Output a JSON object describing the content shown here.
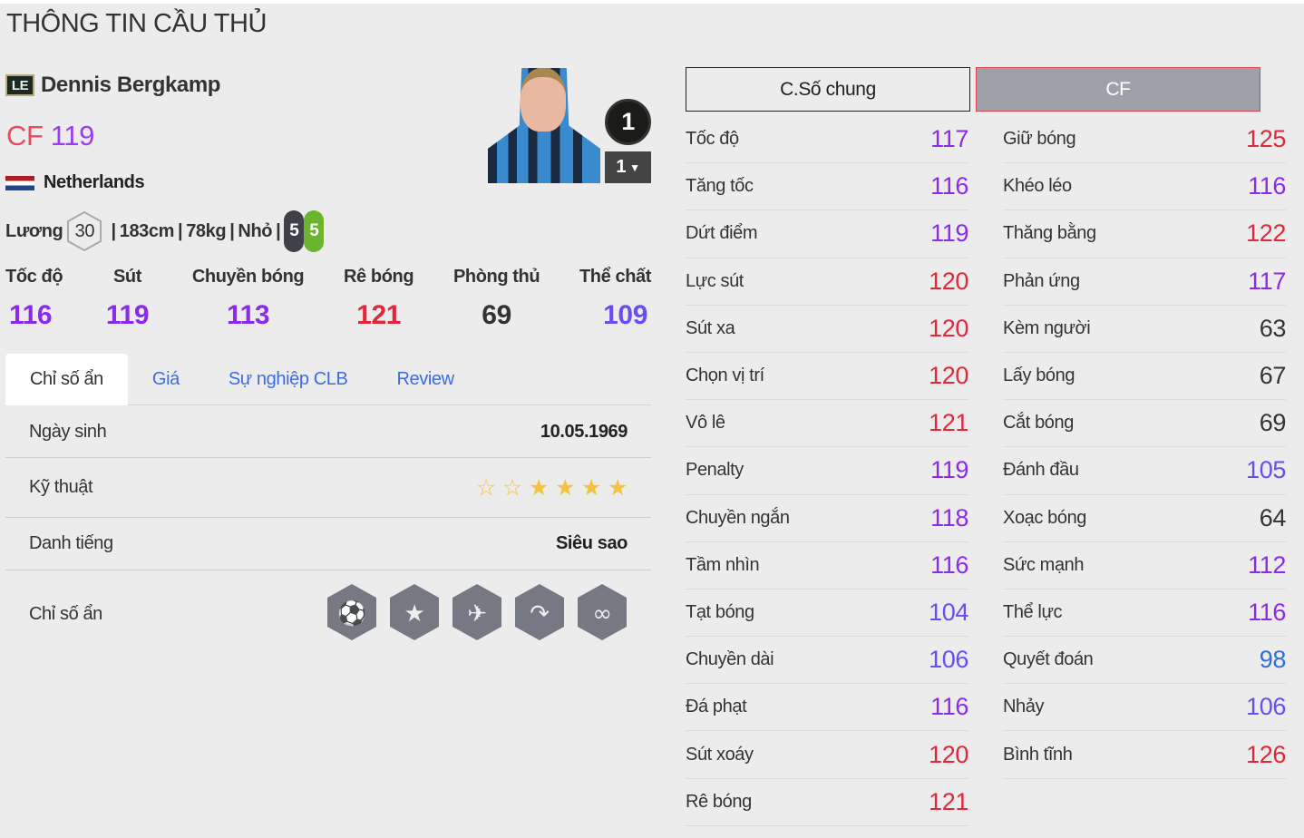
{
  "page_title": "THÔNG TIN CẦU THỦ",
  "player": {
    "season_badge": "LE",
    "name": "Dennis Bergkamp",
    "position": "CF",
    "ovr": "119",
    "nation": "Netherlands",
    "salary_label": "Lương",
    "salary": "30",
    "height": "183cm",
    "weight": "78kg",
    "body": "Nhỏ",
    "weak_foot": "5",
    "strong_foot": "5",
    "level": "1",
    "level_select": "1"
  },
  "colors": {
    "red": "#e0283c",
    "purple": "#8a2be8",
    "indigo": "#6a4cf0",
    "blue": "#2f6fd6",
    "dark": "#333333",
    "accent_link": "#3b6de0"
  },
  "summary": [
    {
      "label": "Tốc độ",
      "value": "116",
      "color": "#8a2be8"
    },
    {
      "label": "Sút",
      "value": "119",
      "color": "#8a2be8"
    },
    {
      "label": "Chuyền bóng",
      "value": "113",
      "color": "#8a2be8"
    },
    {
      "label": "Rê bóng",
      "value": "121",
      "color": "#e0283c"
    },
    {
      "label": "Phòng thủ",
      "value": "69",
      "color": "#333333"
    },
    {
      "label": "Thể chất",
      "value": "109",
      "color": "#6a4cf0"
    }
  ],
  "tabs": [
    "Chỉ số ẩn",
    "Giá",
    "Sự nghiệp CLB",
    "Review"
  ],
  "info": {
    "birth_label": "Ngày sinh",
    "birth": "10.05.1969",
    "skill_label": "Kỹ thuật",
    "skill_stars": 4,
    "skill_max": 6,
    "rep_label": "Danh tiếng",
    "rep": "Siêu sao",
    "hidden_label": "Chỉ số ẩn",
    "hidden_traits": [
      "long-shot-icon",
      "star-player-icon",
      "first-time-shot-icon",
      "finesse-shot-icon",
      "dribbler-icon"
    ]
  },
  "stat_buttons": {
    "general": "C.Số chung",
    "position": "CF"
  },
  "stats_left": [
    [
      "Tốc độ",
      "117",
      "#8a2be8"
    ],
    [
      "Tăng tốc",
      "116",
      "#8a2be8"
    ],
    [
      "Dứt điểm",
      "119",
      "#8a2be8"
    ],
    [
      "Lực sút",
      "120",
      "#e0283c"
    ],
    [
      "Sút xa",
      "120",
      "#e0283c"
    ],
    [
      "Chọn vị trí",
      "120",
      "#e0283c"
    ],
    [
      "Vô lê",
      "121",
      "#e0283c"
    ],
    [
      "Penalty",
      "119",
      "#8a2be8"
    ],
    [
      "Chuyền ngắn",
      "118",
      "#8a2be8"
    ],
    [
      "Tầm nhìn",
      "116",
      "#8a2be8"
    ],
    [
      "Tạt bóng",
      "104",
      "#6a4cf0"
    ],
    [
      "Chuyền dài",
      "106",
      "#6a4cf0"
    ],
    [
      "Đá phạt",
      "116",
      "#8a2be8"
    ],
    [
      "Sút xoáy",
      "120",
      "#e0283c"
    ],
    [
      "Rê bóng",
      "121",
      "#e0283c"
    ]
  ],
  "stats_right": [
    [
      "Giữ bóng",
      "125",
      "#e0283c"
    ],
    [
      "Khéo léo",
      "116",
      "#8a2be8"
    ],
    [
      "Thăng bằng",
      "122",
      "#e0283c"
    ],
    [
      "Phản ứng",
      "117",
      "#8a2be8"
    ],
    [
      "Kèm người",
      "63",
      "#333333"
    ],
    [
      "Lấy bóng",
      "67",
      "#333333"
    ],
    [
      "Cắt bóng",
      "69",
      "#333333"
    ],
    [
      "Đánh đầu",
      "105",
      "#6a4cf0"
    ],
    [
      "Xoạc bóng",
      "64",
      "#333333"
    ],
    [
      "Sức mạnh",
      "112",
      "#8a2be8"
    ],
    [
      "Thể lực",
      "116",
      "#8a2be8"
    ],
    [
      "Quyết đoán",
      "98",
      "#2f6fd6"
    ],
    [
      "Nhảy",
      "106",
      "#6a4cf0"
    ],
    [
      "Bình tĩnh",
      "126",
      "#e0283c"
    ]
  ]
}
